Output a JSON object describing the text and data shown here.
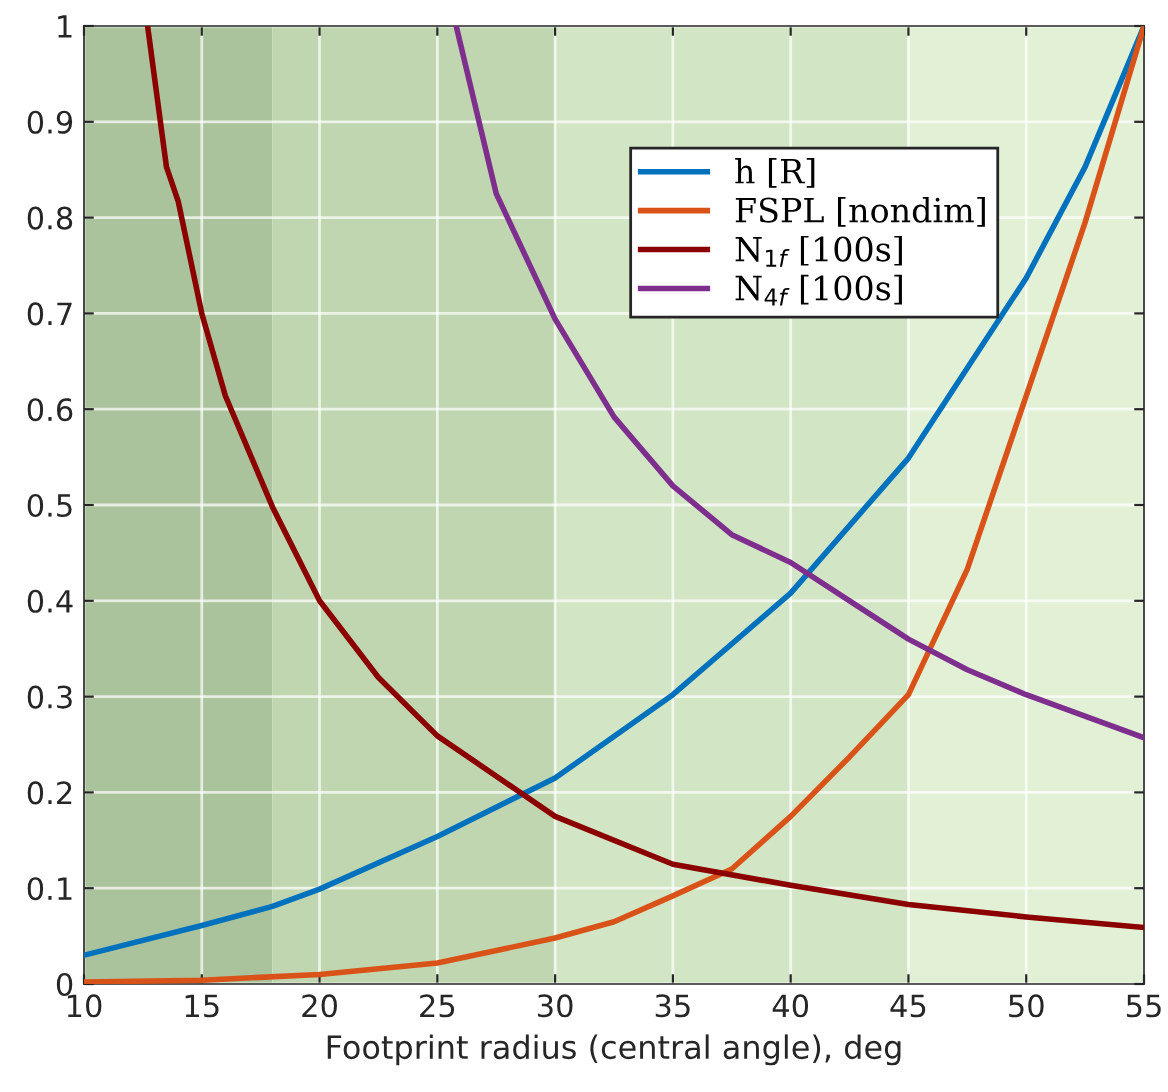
{
  "chart_data": {
    "type": "line",
    "xlabel": "Footprint radius (central angle), deg",
    "xlim": [
      10,
      55
    ],
    "ylim": [
      0,
      1
    ],
    "xticks": [
      10,
      15,
      20,
      25,
      30,
      35,
      40,
      45,
      50,
      55
    ],
    "yticks": [
      0,
      0.1,
      0.2,
      0.3,
      0.4,
      0.5,
      0.6,
      0.7,
      0.8,
      0.9,
      1
    ],
    "grid": true,
    "legend": "top right",
    "line_style": "solid",
    "marker": "none",
    "bands": [
      {
        "axis": "x",
        "from": 10,
        "to": 18,
        "color": "#abc39c"
      },
      {
        "axis": "x",
        "from": 18,
        "to": 30,
        "color": "#c0d6b0"
      },
      {
        "axis": "x",
        "from": 30,
        "to": 45,
        "color": "#d2e5c5"
      },
      {
        "axis": "x",
        "from": 45,
        "to": 55,
        "color": "#e2f1d6"
      }
    ],
    "series": [
      {
        "name": "h [R]",
        "color": "#0072bd",
        "x": [
          10,
          15,
          18,
          20,
          25,
          30,
          35,
          40,
          45,
          50,
          52.5,
          55
        ],
        "values": [
          0.03,
          0.061,
          0.081,
          0.099,
          0.154,
          0.215,
          0.302,
          0.408,
          0.549,
          0.737,
          0.853,
          1.0
        ]
      },
      {
        "name": "FSPL [nondim]",
        "color": "#d95319",
        "x": [
          10,
          15,
          20,
          25,
          30,
          32.5,
          35,
          37.5,
          40,
          42.5,
          45,
          47.5,
          50,
          52.5,
          55
        ],
        "values": [
          0.002,
          0.004,
          0.01,
          0.022,
          0.048,
          0.065,
          0.092,
          0.12,
          0.175,
          0.237,
          0.302,
          0.433,
          0.614,
          0.795,
          1.0
        ]
      },
      {
        "name": "N$_{1f}$ [100s]",
        "color": "#8b0000",
        "x": [
          12.7,
          13.5,
          14,
          15,
          16,
          18,
          20,
          22.5,
          25,
          30,
          35,
          40,
          45,
          50,
          55
        ],
        "values": [
          1.0,
          0.853,
          0.817,
          0.7,
          0.614,
          0.498,
          0.4,
          0.32,
          0.259,
          0.175,
          0.125,
          0.103,
          0.083,
          0.07,
          0.059
        ]
      },
      {
        "name": "N$_{4f}$ [100s]",
        "color": "#7e2f8e",
        "x": [
          25.8,
          27.5,
          30,
          32.5,
          35,
          37.5,
          40,
          42.5,
          45,
          47.5,
          50,
          55
        ],
        "values": [
          1.0,
          0.825,
          0.694,
          0.592,
          0.52,
          0.469,
          0.44,
          0.4,
          0.36,
          0.328,
          0.302,
          0.257
        ]
      }
    ]
  }
}
